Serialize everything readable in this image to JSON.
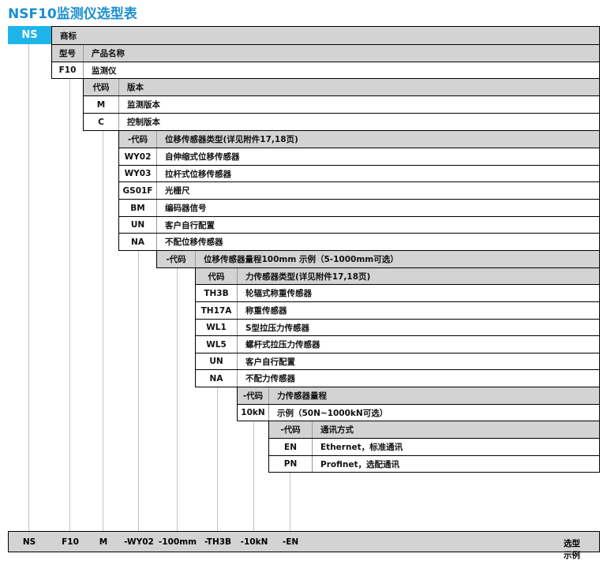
{
  "title": "NSF10监测仪选型表",
  "brand": {
    "code": "NS",
    "label": "商标",
    "color": "#1fb5ea"
  },
  "sections": [
    {
      "header": {
        "code": "型号",
        "label": "产品名称"
      },
      "rows": [
        {
          "code": "F10",
          "label": "监测仪"
        }
      ]
    },
    {
      "header": {
        "code": "代码",
        "label": "版本"
      },
      "rows": [
        {
          "code": "M",
          "label": "监测版本"
        },
        {
          "code": "C",
          "label": "控制版本"
        }
      ]
    },
    {
      "header": {
        "code": "-代码",
        "label": "位移传感器类型(详见附件17,18页)"
      },
      "rows": [
        {
          "code": "WY02",
          "label": "自伸缩式位移传感器"
        },
        {
          "code": "WY03",
          "label": "拉杆式位移传感器"
        },
        {
          "code": "GS01F",
          "label": "光栅尺"
        },
        {
          "code": "BM",
          "label": "编码器信号"
        },
        {
          "code": "UN",
          "label": "客户自行配置"
        },
        {
          "code": "NA",
          "label": "不配位移传感器"
        }
      ]
    },
    {
      "header": {
        "code": "-代码",
        "label": "位移传感器量程100mm  示例（5-1000mm可选）"
      },
      "rows": []
    },
    {
      "header": {
        "code": "代码",
        "label": "力传感器类型(详见附件17,18页)"
      },
      "rows": [
        {
          "code": "TH3B",
          "label": "轮辐式称重传感器"
        },
        {
          "code": "TH17A",
          "label": "称重传感器"
        },
        {
          "code": "WL1",
          "label": "S型拉压力传感器"
        },
        {
          "code": "WL5",
          "label": "螺杆式拉压力传感器"
        },
        {
          "code": "UN",
          "label": "客户自行配置"
        },
        {
          "code": "NA",
          "label": "不配力传感器"
        }
      ]
    },
    {
      "header": {
        "code": "-代码",
        "label": "力传感器量程"
      },
      "rows": [
        {
          "code": "10kN",
          "label": "示例（50N~1000kN可选）"
        }
      ]
    },
    {
      "header": {
        "code": "-代码",
        "label": "通讯方式"
      },
      "rows": [
        {
          "code": "EN",
          "label": "Ethernet，标准通讯"
        },
        {
          "code": "PN",
          "label": "Profinet，选配通讯"
        }
      ]
    }
  ],
  "example": {
    "parts": [
      "NS",
      "F10",
      "M",
      "-WY02",
      "-100mm",
      "-TH3B",
      "-10kN",
      "-EN"
    ],
    "label": "选型示例"
  }
}
